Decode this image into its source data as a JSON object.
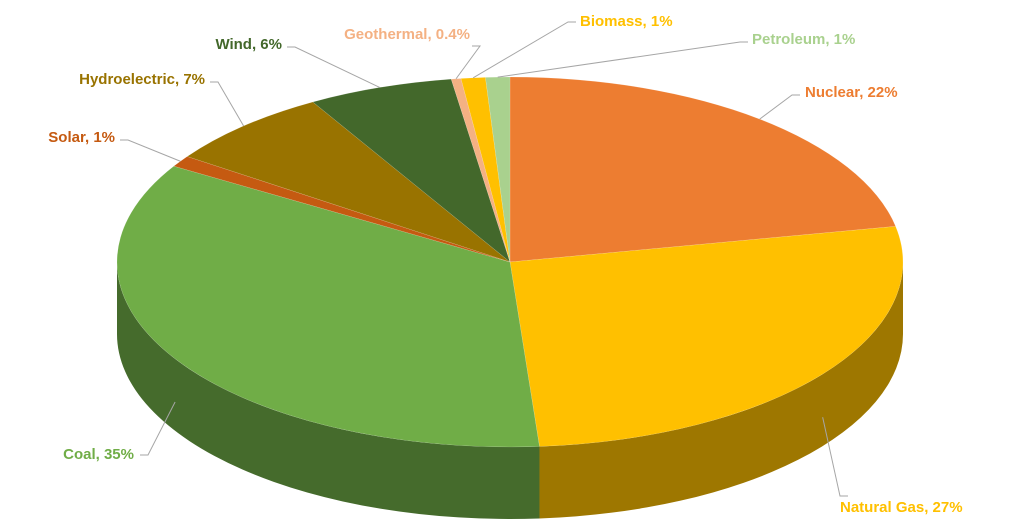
{
  "chart_data": {
    "type": "pie",
    "values": [
      22,
      27,
      35,
      1,
      7,
      6,
      0.4,
      1,
      1
    ],
    "value_labels": [
      "Nuclear, 22%",
      "Natural Gas, 27%",
      "Coal, 35%",
      "Solar, 1%",
      "Hydroelectric, 7%",
      "Wind, 6%",
      "Geothermal, 0.4%",
      "Biomass, 1%",
      "Petroleum, 1%"
    ],
    "colors": [
      "#ed7d31",
      "#ffc000",
      "#70ad47",
      "#c55a11",
      "#997300",
      "#43682b",
      "#f4b183",
      "#ffc000",
      "#a9d18e"
    ]
  }
}
